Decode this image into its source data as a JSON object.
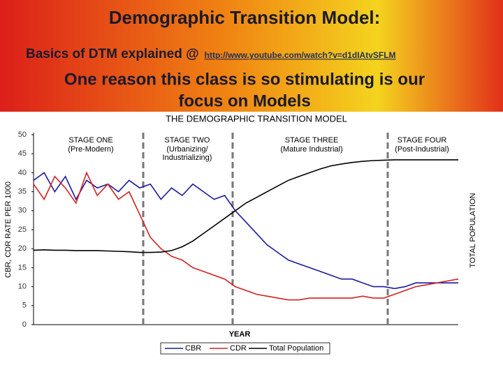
{
  "slide": {
    "title": "Demographic Transition Model:",
    "subtitle": "Basics of DTM explained @",
    "link": "http://www.youtube.com/watch?v=d1dIAtvSFLM",
    "lines": [
      "One reason this class is so stimulating is our",
      "focus on Models"
    ]
  },
  "chart_data": {
    "type": "line",
    "title": "THE DEMOGRAPHIC TRANSITION MODEL",
    "y_label": "CBR, CDR RATE PER 1000",
    "y2_label": "TOTAL POPULATION",
    "x_label": "YEAR",
    "ylim": [
      0,
      50
    ],
    "yticks": [
      0,
      5,
      10,
      15,
      20,
      25,
      30,
      35,
      40,
      45,
      50
    ],
    "stages": [
      {
        "name": "STAGE ONE",
        "note": [
          "(Pre-Modern)"
        ]
      },
      {
        "name": "STAGE TWO",
        "note": [
          "(Urbanizing/",
          "Industrializing)"
        ]
      },
      {
        "name": "STAGE THREE",
        "note": [
          "(Mature Industrial)"
        ]
      },
      {
        "name": "STAGE FOUR",
        "note": [
          "(Post-Industrial)"
        ]
      }
    ],
    "series": [
      {
        "name": "CBR",
        "color": "#1a1aa0",
        "values": [
          38,
          40,
          35,
          39,
          33,
          38,
          36,
          37,
          35,
          38,
          36,
          37,
          33,
          36,
          34,
          37,
          35,
          33,
          34,
          30,
          27,
          24,
          21,
          19,
          17,
          16,
          15,
          14,
          13,
          12,
          12,
          11,
          10,
          10,
          9.5,
          10,
          11,
          11,
          11,
          11,
          11
        ]
      },
      {
        "name": "CDR",
        "color": "#d42020",
        "values": [
          37,
          33,
          39,
          36,
          32,
          40,
          34,
          37,
          33,
          35,
          29,
          23,
          20,
          18,
          17,
          15,
          14,
          13,
          12,
          10,
          9,
          8,
          7.5,
          7,
          6.5,
          6.5,
          7,
          7,
          7,
          7,
          7,
          7.5,
          7,
          7,
          8,
          9,
          10,
          10.5,
          11,
          11.5,
          12
        ]
      },
      {
        "name": "Total Population",
        "color": "#000000",
        "values": [
          19.6,
          19.7,
          19.6,
          19.6,
          19.5,
          19.5,
          19.5,
          19.4,
          19.3,
          19.2,
          19.0,
          19.0,
          19.1,
          19.5,
          20.5,
          22,
          24,
          26,
          28,
          30,
          32,
          33.5,
          35,
          36.5,
          38,
          39,
          40,
          41,
          41.8,
          42.3,
          42.7,
          43,
          43.2,
          43.3,
          43.4,
          43.4,
          43.4,
          43.4,
          43.4,
          43.4,
          43.4
        ]
      }
    ]
  }
}
